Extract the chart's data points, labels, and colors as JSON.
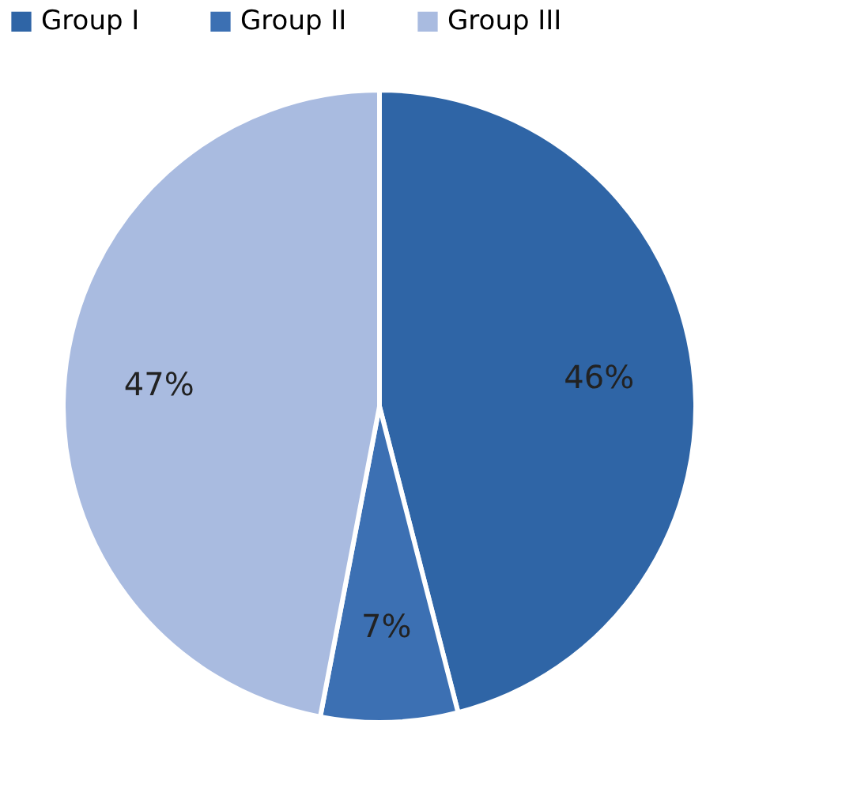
{
  "chart_data": {
    "type": "pie",
    "categories": [
      "Group I",
      "Group II",
      "Group III"
    ],
    "values": [
      46,
      7,
      47
    ],
    "colors": [
      "#2f65a6",
      "#3c70b3",
      "#a9bbe0"
    ],
    "value_labels": [
      "46%",
      "7%",
      "47%"
    ],
    "legend": "top"
  }
}
